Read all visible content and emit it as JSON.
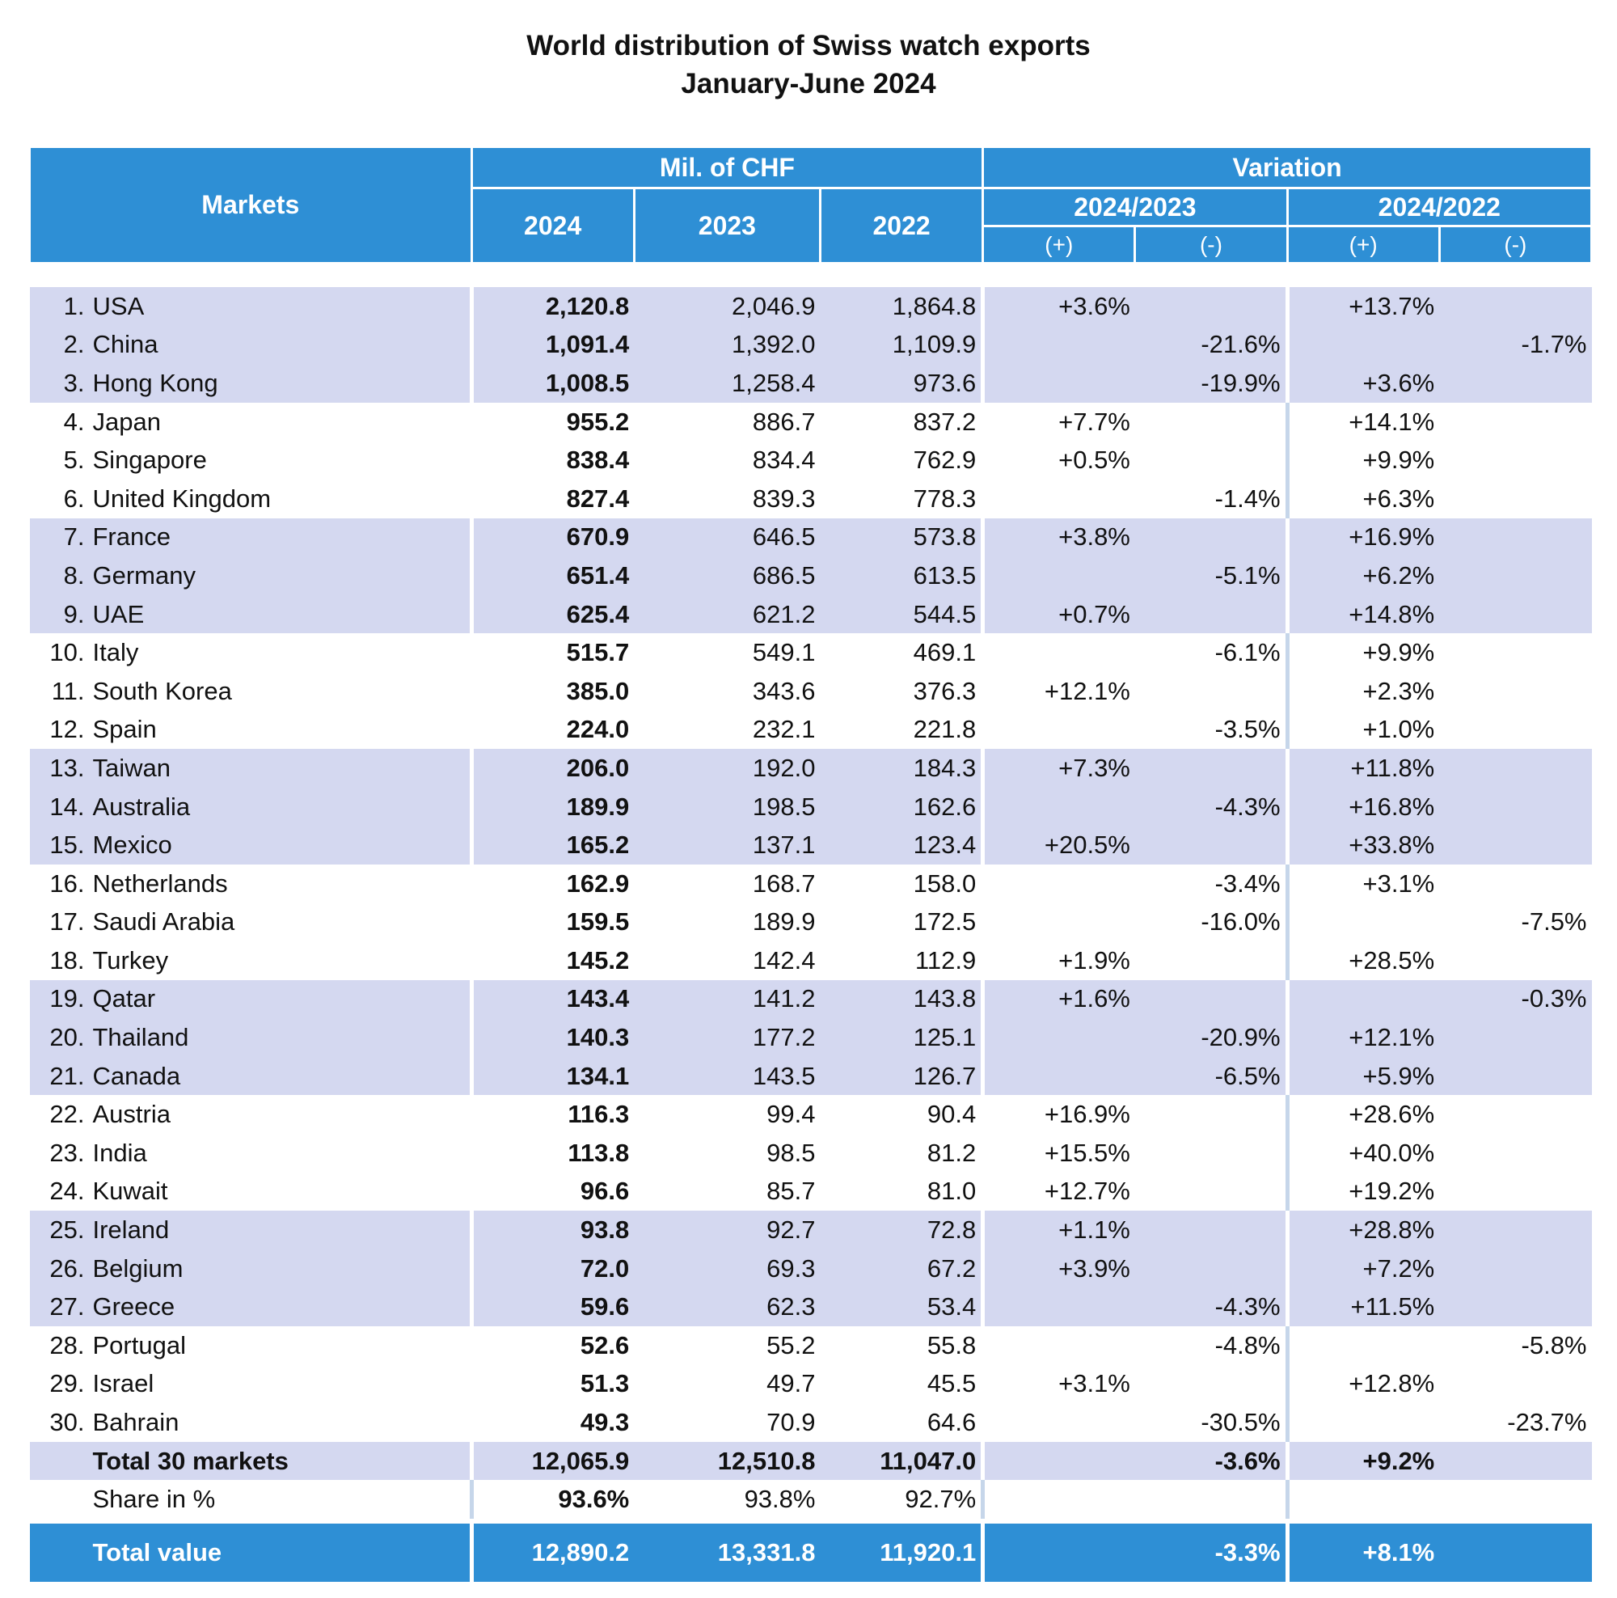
{
  "title": "World distribution of Swiss watch exports",
  "subtitle": "January-June 2024",
  "header": {
    "markets": "Markets",
    "mil_chf": "Mil. of CHF",
    "variation": "Variation",
    "y2024": "2024",
    "y2023": "2023",
    "y2022": "2022",
    "v2024_2023": "2024/2023",
    "v2024_2022": "2024/2022",
    "plus": "(+)",
    "minus": "(-)"
  },
  "rows": [
    {
      "rank": "1.",
      "market": "USA",
      "v2024": "2,120.8",
      "v2023": "2,046.9",
      "v2022": "1,864.8",
      "p1": "+3.6%",
      "m1": "",
      "p2": "+13.7%",
      "m2": ""
    },
    {
      "rank": "2.",
      "market": "China",
      "v2024": "1,091.4",
      "v2023": "1,392.0",
      "v2022": "1,109.9",
      "p1": "",
      "m1": "-21.6%",
      "p2": "",
      "m2": "-1.7%"
    },
    {
      "rank": "3.",
      "market": "Hong Kong",
      "v2024": "1,008.5",
      "v2023": "1,258.4",
      "v2022": "973.6",
      "p1": "",
      "m1": "-19.9%",
      "p2": "+3.6%",
      "m2": ""
    },
    {
      "rank": "4.",
      "market": "Japan",
      "v2024": "955.2",
      "v2023": "886.7",
      "v2022": "837.2",
      "p1": "+7.7%",
      "m1": "",
      "p2": "+14.1%",
      "m2": ""
    },
    {
      "rank": "5.",
      "market": "Singapore",
      "v2024": "838.4",
      "v2023": "834.4",
      "v2022": "762.9",
      "p1": "+0.5%",
      "m1": "",
      "p2": "+9.9%",
      "m2": ""
    },
    {
      "rank": "6.",
      "market": "United Kingdom",
      "v2024": "827.4",
      "v2023": "839.3",
      "v2022": "778.3",
      "p1": "",
      "m1": "-1.4%",
      "p2": "+6.3%",
      "m2": ""
    },
    {
      "rank": "7.",
      "market": "France",
      "v2024": "670.9",
      "v2023": "646.5",
      "v2022": "573.8",
      "p1": "+3.8%",
      "m1": "",
      "p2": "+16.9%",
      "m2": ""
    },
    {
      "rank": "8.",
      "market": "Germany",
      "v2024": "651.4",
      "v2023": "686.5",
      "v2022": "613.5",
      "p1": "",
      "m1": "-5.1%",
      "p2": "+6.2%",
      "m2": ""
    },
    {
      "rank": "9.",
      "market": "UAE",
      "v2024": "625.4",
      "v2023": "621.2",
      "v2022": "544.5",
      "p1": "+0.7%",
      "m1": "",
      "p2": "+14.8%",
      "m2": ""
    },
    {
      "rank": "10.",
      "market": "Italy",
      "v2024": "515.7",
      "v2023": "549.1",
      "v2022": "469.1",
      "p1": "",
      "m1": "-6.1%",
      "p2": "+9.9%",
      "m2": ""
    },
    {
      "rank": "11.",
      "market": "South Korea",
      "v2024": "385.0",
      "v2023": "343.6",
      "v2022": "376.3",
      "p1": "+12.1%",
      "m1": "",
      "p2": "+2.3%",
      "m2": ""
    },
    {
      "rank": "12.",
      "market": "Spain",
      "v2024": "224.0",
      "v2023": "232.1",
      "v2022": "221.8",
      "p1": "",
      "m1": "-3.5%",
      "p2": "+1.0%",
      "m2": ""
    },
    {
      "rank": "13.",
      "market": "Taiwan",
      "v2024": "206.0",
      "v2023": "192.0",
      "v2022": "184.3",
      "p1": "+7.3%",
      "m1": "",
      "p2": "+11.8%",
      "m2": ""
    },
    {
      "rank": "14.",
      "market": "Australia",
      "v2024": "189.9",
      "v2023": "198.5",
      "v2022": "162.6",
      "p1": "",
      "m1": "-4.3%",
      "p2": "+16.8%",
      "m2": ""
    },
    {
      "rank": "15.",
      "market": "Mexico",
      "v2024": "165.2",
      "v2023": "137.1",
      "v2022": "123.4",
      "p1": "+20.5%",
      "m1": "",
      "p2": "+33.8%",
      "m2": ""
    },
    {
      "rank": "16.",
      "market": "Netherlands",
      "v2024": "162.9",
      "v2023": "168.7",
      "v2022": "158.0",
      "p1": "",
      "m1": "-3.4%",
      "p2": "+3.1%",
      "m2": ""
    },
    {
      "rank": "17.",
      "market": "Saudi Arabia",
      "v2024": "159.5",
      "v2023": "189.9",
      "v2022": "172.5",
      "p1": "",
      "m1": "-16.0%",
      "p2": "",
      "m2": "-7.5%"
    },
    {
      "rank": "18.",
      "market": "Turkey",
      "v2024": "145.2",
      "v2023": "142.4",
      "v2022": "112.9",
      "p1": "+1.9%",
      "m1": "",
      "p2": "+28.5%",
      "m2": ""
    },
    {
      "rank": "19.",
      "market": "Qatar",
      "v2024": "143.4",
      "v2023": "141.2",
      "v2022": "143.8",
      "p1": "+1.6%",
      "m1": "",
      "p2": "",
      "m2": "-0.3%"
    },
    {
      "rank": "20.",
      "market": "Thailand",
      "v2024": "140.3",
      "v2023": "177.2",
      "v2022": "125.1",
      "p1": "",
      "m1": "-20.9%",
      "p2": "+12.1%",
      "m2": ""
    },
    {
      "rank": "21.",
      "market": "Canada",
      "v2024": "134.1",
      "v2023": "143.5",
      "v2022": "126.7",
      "p1": "",
      "m1": "-6.5%",
      "p2": "+5.9%",
      "m2": ""
    },
    {
      "rank": "22.",
      "market": "Austria",
      "v2024": "116.3",
      "v2023": "99.4",
      "v2022": "90.4",
      "p1": "+16.9%",
      "m1": "",
      "p2": "+28.6%",
      "m2": ""
    },
    {
      "rank": "23.",
      "market": "India",
      "v2024": "113.8",
      "v2023": "98.5",
      "v2022": "81.2",
      "p1": "+15.5%",
      "m1": "",
      "p2": "+40.0%",
      "m2": ""
    },
    {
      "rank": "24.",
      "market": "Kuwait",
      "v2024": "96.6",
      "v2023": "85.7",
      "v2022": "81.0",
      "p1": "+12.7%",
      "m1": "",
      "p2": "+19.2%",
      "m2": ""
    },
    {
      "rank": "25.",
      "market": "Ireland",
      "v2024": "93.8",
      "v2023": "92.7",
      "v2022": "72.8",
      "p1": "+1.1%",
      "m1": "",
      "p2": "+28.8%",
      "m2": ""
    },
    {
      "rank": "26.",
      "market": "Belgium",
      "v2024": "72.0",
      "v2023": "69.3",
      "v2022": "67.2",
      "p1": "+3.9%",
      "m1": "",
      "p2": "+7.2%",
      "m2": ""
    },
    {
      "rank": "27.",
      "market": "Greece",
      "v2024": "59.6",
      "v2023": "62.3",
      "v2022": "53.4",
      "p1": "",
      "m1": "-4.3%",
      "p2": "+11.5%",
      "m2": ""
    },
    {
      "rank": "28.",
      "market": "Portugal",
      "v2024": "52.6",
      "v2023": "55.2",
      "v2022": "55.8",
      "p1": "",
      "m1": "-4.8%",
      "p2": "",
      "m2": "-5.8%"
    },
    {
      "rank": "29.",
      "market": "Israel",
      "v2024": "51.3",
      "v2023": "49.7",
      "v2022": "45.5",
      "p1": "+3.1%",
      "m1": "",
      "p2": "+12.8%",
      "m2": ""
    },
    {
      "rank": "30.",
      "market": "Bahrain",
      "v2024": "49.3",
      "v2023": "70.9",
      "v2022": "64.6",
      "p1": "",
      "m1": "-30.5%",
      "p2": "",
      "m2": "-23.7%"
    }
  ],
  "total30": {
    "label": "Total 30 markets",
    "v2024": "12,065.9",
    "v2023": "12,510.8",
    "v2022": "11,047.0",
    "p1": "",
    "m1": "-3.6%",
    "p2": "+9.2%",
    "m2": ""
  },
  "share": {
    "label": "Share in %",
    "v2024": "93.6%",
    "v2023": "93.8%",
    "v2022": "92.7%"
  },
  "grand_total": {
    "label": "Total value",
    "v2024": "12,890.2",
    "v2023": "13,331.8",
    "v2022": "11,920.1",
    "p1": "",
    "m1": "-3.3%",
    "p2": "+8.1%",
    "m2": ""
  }
}
